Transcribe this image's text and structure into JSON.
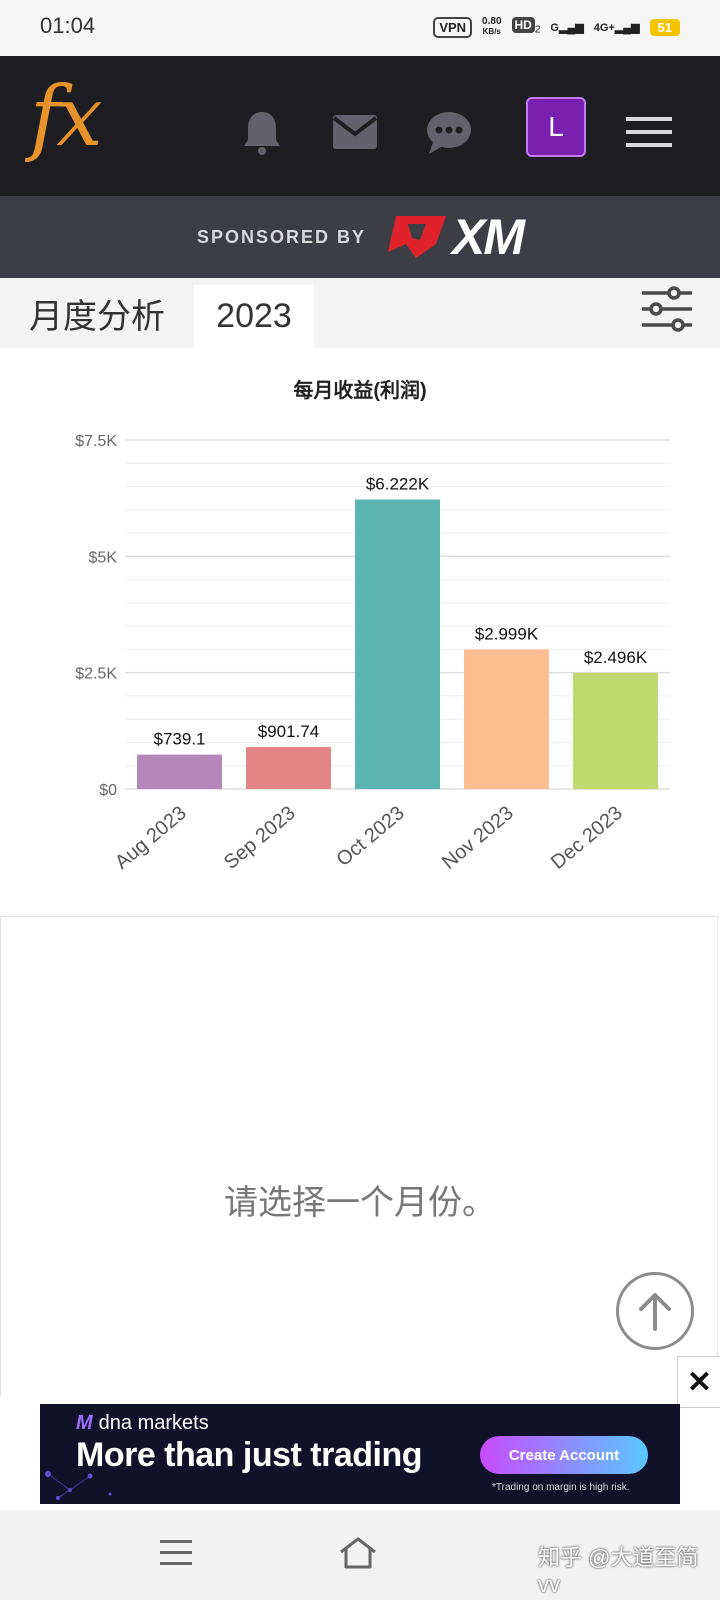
{
  "status_bar": {
    "time": "01:04",
    "vpn": "VPN",
    "speed_value": "0.80",
    "speed_unit": "KB/s",
    "hd": "HD",
    "hd_sub": "2",
    "signal1": "G",
    "signal2": "4G+",
    "battery": "51"
  },
  "header": {
    "logo": "fx",
    "avatar_letter": "L",
    "icons": [
      "bell-icon",
      "mail-icon",
      "chat-icon",
      "hamburger-menu-icon"
    ]
  },
  "sponsor": {
    "label": "SPONSORED BY",
    "brand": "XM"
  },
  "tabs": {
    "monthly": "月度分析",
    "year": "2023"
  },
  "chart_title": "每月收益(利润)",
  "chart_data": {
    "type": "bar",
    "title": "每月收益(利润)",
    "categories": [
      "Aug 2023",
      "Sep 2023",
      "Oct 2023",
      "Nov 2023",
      "Dec 2023"
    ],
    "values": [
      739.1,
      901.74,
      6222,
      2999,
      2496
    ],
    "data_labels": [
      "$739.1",
      "$901.74",
      "$6.222K",
      "$2.999K",
      "$2.496K"
    ],
    "colors": [
      "#b586b8",
      "#e48585",
      "#5bb3b2",
      "#ffbe91",
      "#c0d870"
    ],
    "ylim": [
      0,
      7500
    ],
    "yticks": [
      0,
      2500,
      5000,
      7500
    ],
    "ytick_labels": [
      "$0",
      "$2.5K",
      "$5K",
      "$7.5K"
    ],
    "grid": true,
    "xlabel": "",
    "ylabel": ""
  },
  "empty_message": "请选择一个月份。",
  "ad": {
    "brand": "dna markets",
    "headline": "More than just trading",
    "cta": "Create Account",
    "disclaimer": "*Trading on margin is high risk."
  },
  "watermark": "知乎 @大道至简vv"
}
